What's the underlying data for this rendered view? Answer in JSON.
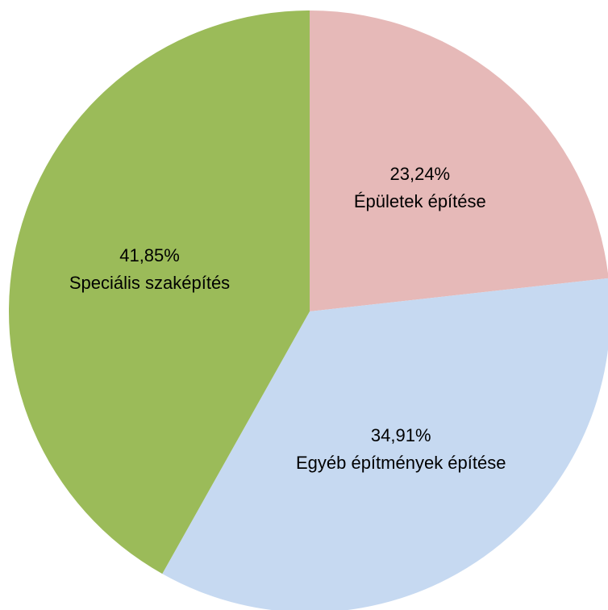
{
  "chart_data": {
    "type": "pie",
    "categories": [
      "Épületek építése",
      "Egyéb építmények építése",
      "Speciális szaképítés"
    ],
    "values": [
      23.24,
      34.91,
      41.85
    ],
    "value_labels": [
      "23,24%",
      "34,91%",
      "41,85%"
    ],
    "colors": [
      "#e6b9b8",
      "#c6d9f1",
      "#9bbb59"
    ]
  }
}
